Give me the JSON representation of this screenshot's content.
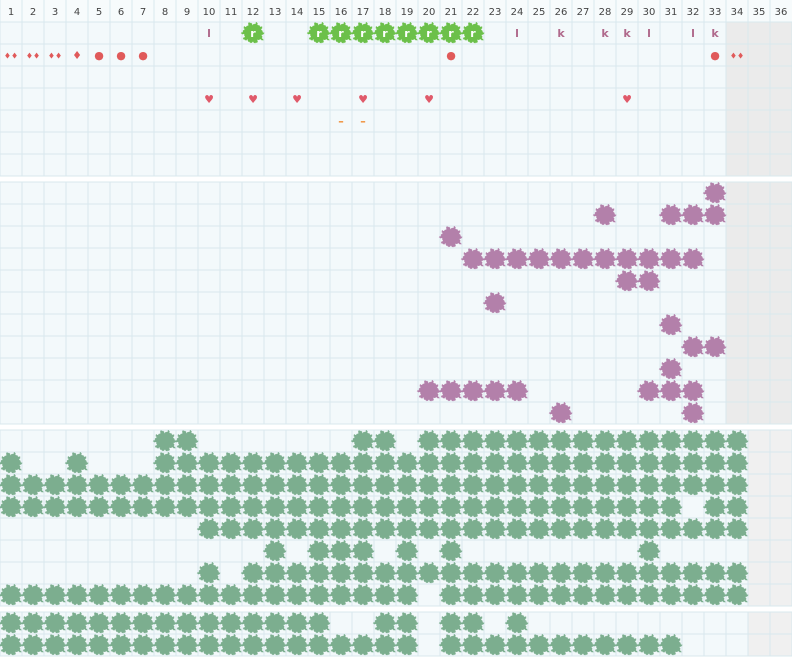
{
  "columns": [
    1,
    2,
    3,
    4,
    5,
    6,
    7,
    8,
    9,
    10,
    11,
    12,
    13,
    14,
    15,
    16,
    17,
    18,
    19,
    20,
    21,
    22,
    23,
    24,
    25,
    26,
    27,
    28,
    29,
    30,
    31,
    32,
    33,
    34,
    35,
    36
  ],
  "sections": [
    {
      "rows": [
        [
          {
            "col": 10,
            "text": "l",
            "color": "#b06a8c"
          },
          {
            "col": 12,
            "text": "r",
            "color": "#6cc04a",
            "badge": true
          },
          {
            "col": 15,
            "text": "r",
            "color": "#6cc04a",
            "badge": true
          },
          {
            "col": 16,
            "text": "r",
            "color": "#6cc04a",
            "badge": true
          },
          {
            "col": 17,
            "text": "r",
            "color": "#6cc04a",
            "badge": true
          },
          {
            "col": 18,
            "text": "r",
            "color": "#6cc04a",
            "badge": true
          },
          {
            "col": 19,
            "text": "r",
            "color": "#6cc04a",
            "badge": true
          },
          {
            "col": 20,
            "text": "r",
            "color": "#6cc04a",
            "badge": true
          },
          {
            "col": 21,
            "text": "r",
            "color": "#6cc04a",
            "badge": true
          },
          {
            "col": 22,
            "text": "r",
            "color": "#6cc04a",
            "badge": true
          },
          {
            "col": 24,
            "text": "l",
            "color": "#b06a8c"
          },
          {
            "col": 26,
            "text": "k",
            "color": "#b06a8c"
          },
          {
            "col": 28,
            "text": "k",
            "color": "#b06a8c"
          },
          {
            "col": 29,
            "text": "k",
            "color": "#b06a8c"
          },
          {
            "col": 30,
            "text": "l",
            "color": "#b06a8c"
          },
          {
            "col": 32,
            "text": "l",
            "color": "#b06a8c"
          },
          {
            "col": 33,
            "text": "k",
            "color": "#b06a8c"
          }
        ],
        [
          {
            "col": 1,
            "text": "♦♦",
            "color": "#e05a5a"
          },
          {
            "col": 2,
            "text": "♦♦",
            "color": "#e05a5a"
          },
          {
            "col": 3,
            "text": "♦♦",
            "color": "#e05a5a"
          },
          {
            "col": 4,
            "text": "♦",
            "color": "#e05a5a"
          },
          {
            "col": 5,
            "text": "●",
            "color": "#e05a5a"
          },
          {
            "col": 6,
            "text": "●",
            "color": "#e05a5a"
          },
          {
            "col": 7,
            "text": "●",
            "color": "#e05a5a"
          },
          {
            "col": 21,
            "text": "●",
            "color": "#e05a5a"
          },
          {
            "col": 33,
            "text": "●",
            "color": "#e05a5a"
          },
          {
            "col": 34,
            "text": "♦♦",
            "color": "#e05a5a"
          }
        ],
        [],
        [
          {
            "col": 10,
            "text": "♥",
            "color": "#e05a6a"
          },
          {
            "col": 12,
            "text": "♥",
            "color": "#e05a6a"
          },
          {
            "col": 14,
            "text": "♥",
            "color": "#e05a6a"
          },
          {
            "col": 17,
            "text": "♥",
            "color": "#e05a6a"
          },
          {
            "col": 20,
            "text": "♥",
            "color": "#e05a6a"
          },
          {
            "col": 29,
            "text": "♥",
            "color": "#e05a6a"
          }
        ],
        [
          {
            "col": 16,
            "text": "–",
            "color": "#f08a30"
          },
          {
            "col": 17,
            "text": "–",
            "color": "#f08a30"
          }
        ],
        [],
        []
      ]
    },
    {
      "color": "#b07aa6",
      "rows": [
        [
          33
        ],
        [
          28,
          31,
          32,
          33
        ],
        [
          21
        ],
        [
          22,
          23,
          24,
          25,
          26,
          27,
          28,
          29,
          30,
          31,
          32
        ],
        [
          29,
          30
        ],
        [
          23
        ],
        [
          31
        ],
        [
          32,
          33
        ],
        [
          31
        ],
        [
          20,
          21,
          22,
          23,
          24,
          30,
          31,
          32
        ],
        [
          26,
          32
        ]
      ]
    },
    {
      "color": "#76ab8a",
      "rows": [
        [
          8,
          9,
          17,
          18,
          20,
          21,
          22,
          23,
          24,
          25,
          26,
          27,
          28,
          29,
          30,
          31,
          32,
          33,
          34
        ],
        [
          1,
          4,
          8,
          9,
          10,
          11,
          12,
          13,
          14,
          15,
          16,
          17,
          18,
          19,
          20,
          21,
          22,
          23,
          24,
          25,
          26,
          27,
          28,
          29,
          30,
          31,
          32,
          33,
          34
        ],
        [
          1,
          2,
          3,
          4,
          5,
          6,
          7,
          8,
          9,
          10,
          11,
          12,
          13,
          14,
          15,
          16,
          17,
          18,
          19,
          20,
          21,
          22,
          23,
          24,
          25,
          26,
          27,
          28,
          29,
          30,
          31,
          32,
          33,
          34
        ],
        [
          1,
          2,
          3,
          4,
          5,
          6,
          7,
          8,
          9,
          10,
          11,
          12,
          13,
          14,
          15,
          16,
          17,
          18,
          19,
          20,
          21,
          22,
          23,
          24,
          25,
          26,
          27,
          28,
          29,
          30,
          31,
          33,
          34
        ],
        [
          10,
          11,
          12,
          13,
          14,
          15,
          16,
          17,
          18,
          19,
          20,
          21,
          22,
          23,
          24,
          25,
          26,
          27,
          28,
          29,
          30,
          31,
          32,
          33,
          34
        ],
        [
          13,
          15,
          16,
          17,
          19,
          21,
          30
        ],
        [
          10,
          12,
          13,
          14,
          15,
          16,
          17,
          18,
          19,
          20,
          21,
          22,
          23,
          24,
          25,
          26,
          27,
          28,
          29,
          30,
          31,
          32,
          33,
          34
        ],
        [
          1,
          2,
          3,
          4,
          5,
          6,
          7,
          8,
          9,
          10,
          11,
          12,
          13,
          14,
          15,
          16,
          17,
          18,
          19,
          21,
          22,
          23,
          24,
          25,
          26,
          27,
          28,
          29,
          30,
          31,
          32,
          33,
          34
        ]
      ]
    },
    {
      "color": "#76ab8a",
      "rows": [
        [
          1,
          2,
          3,
          4,
          5,
          6,
          7,
          8,
          9,
          10,
          11,
          12,
          13,
          14,
          15,
          18,
          19,
          21,
          22,
          24
        ],
        [
          1,
          2,
          3,
          4,
          5,
          6,
          7,
          8,
          9,
          10,
          11,
          12,
          13,
          14,
          15,
          16,
          17,
          18,
          19,
          21,
          22,
          23,
          24,
          25,
          26,
          27,
          28,
          29,
          30,
          31
        ]
      ]
    }
  ]
}
